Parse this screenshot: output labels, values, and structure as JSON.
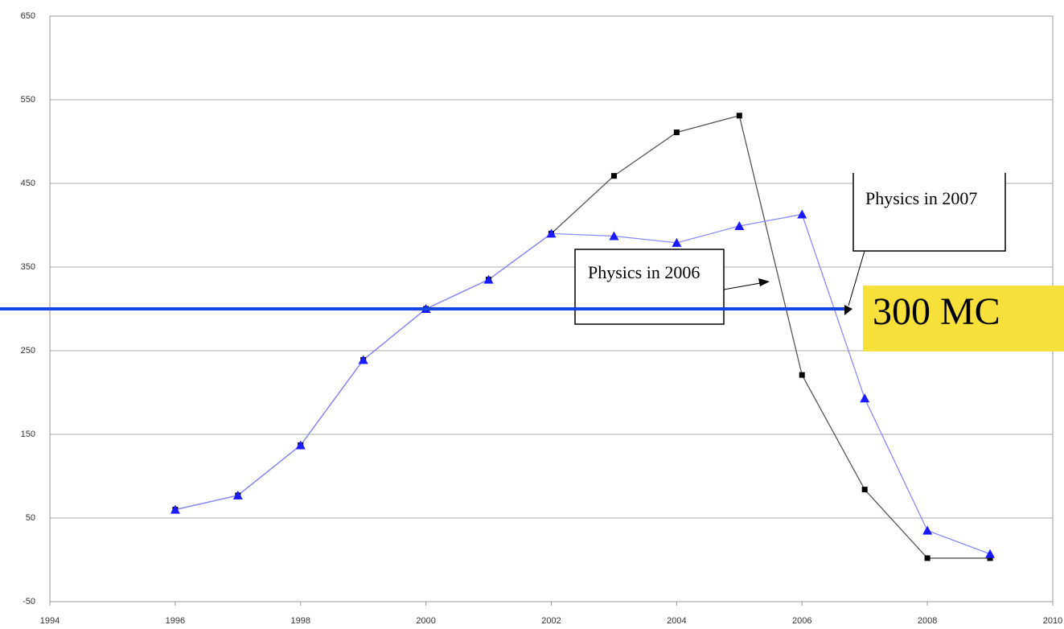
{
  "chart_data": {
    "type": "line",
    "x": [
      1996,
      1997,
      1998,
      1999,
      2000,
      2001,
      2002,
      2003,
      2004,
      2005,
      2006,
      2007,
      2008,
      2009
    ],
    "series": [
      {
        "color": "#000000",
        "line_color": "#555555",
        "marker": "square",
        "values": [
          60,
          77,
          137,
          239,
          300,
          335,
          390,
          459,
          511,
          531,
          221,
          84,
          2,
          2
        ]
      },
      {
        "color": "#1a1aff",
        "line_color": "#8a8aff",
        "marker": "triangle",
        "values": [
          60,
          77,
          137,
          239,
          300,
          335,
          390,
          387,
          379,
          399,
          413,
          193,
          35,
          7
        ]
      }
    ],
    "xlim": [
      1994,
      2010
    ],
    "xticks": [
      1994,
      1996,
      1998,
      2000,
      2002,
      2004,
      2006,
      2008,
      2010
    ],
    "ylim": [
      -50,
      650
    ],
    "yticks": [
      -50,
      50,
      150,
      250,
      350,
      450,
      550,
      650
    ],
    "grid": true,
    "hline": {
      "value": 300,
      "label": "300 MC",
      "color": "#1446e0",
      "label_color": "#f7e03a"
    },
    "annotations": [
      {
        "text": "Physics in 2006"
      },
      {
        "text": "Physics in 2007"
      }
    ]
  }
}
